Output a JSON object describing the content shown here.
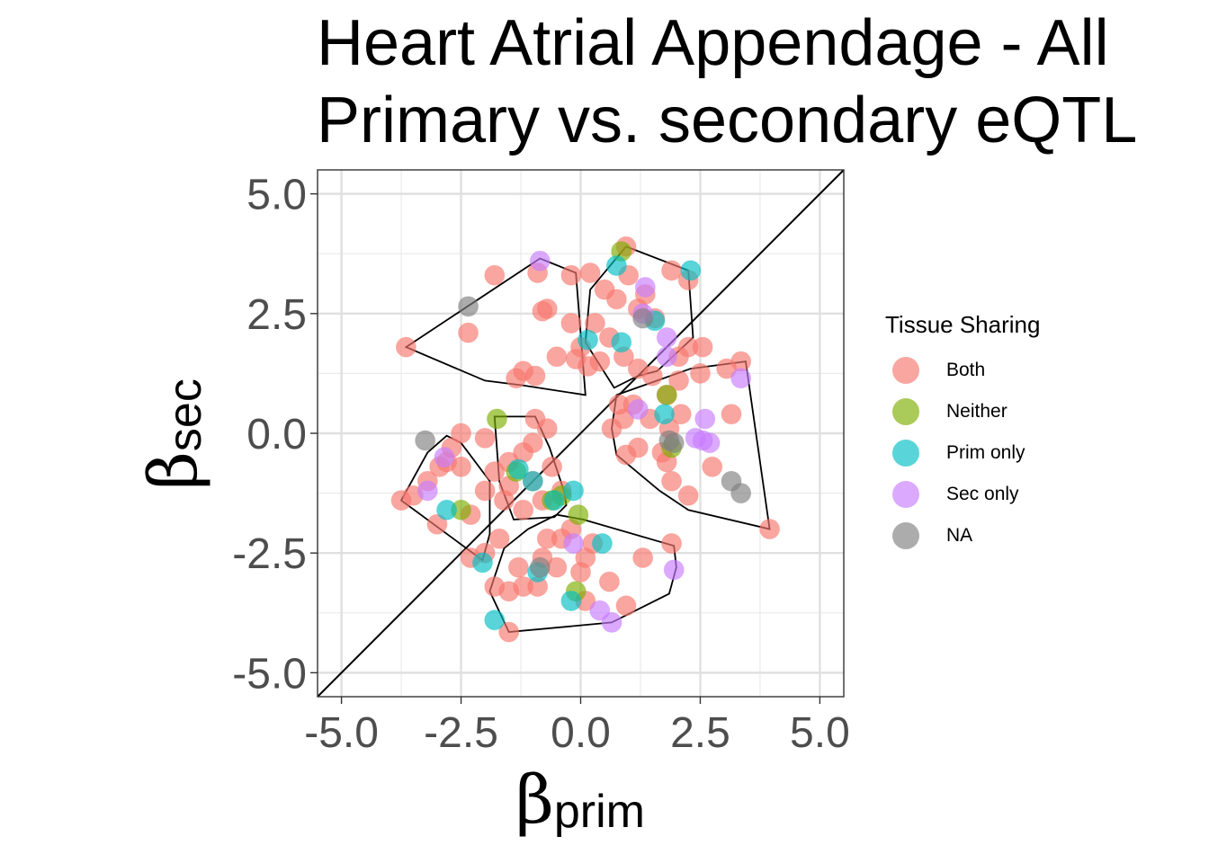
{
  "title_lines": [
    "Heart Atrial Appendage - All",
    "Primary vs. secondary eQTL"
  ],
  "legend": {
    "title": "Tissue Sharing",
    "items": [
      {
        "label": "Both",
        "color": "#F8766D"
      },
      {
        "label": "Neither",
        "color": "#7CAE00"
      },
      {
        "label": "Prim only",
        "color": "#00BFC4"
      },
      {
        "label": "Sec only",
        "color": "#C77CFF"
      },
      {
        "label": "NA",
        "color": "#7F7F7F"
      }
    ]
  },
  "chart_data": {
    "type": "scatter",
    "xlabel": {
      "symbol": "β",
      "sub": "prim"
    },
    "ylabel": {
      "symbol": "β",
      "sub": "sec"
    },
    "xlim": [
      -5.5,
      5.5
    ],
    "ylim": [
      -5.5,
      5.5
    ],
    "xticks": [
      "-5.0",
      "-2.5",
      "0.0",
      "2.5",
      "5.0"
    ],
    "yticks": [
      "5.0",
      "2.5",
      "0.0",
      "-2.5",
      "-5.0"
    ],
    "tick_values": [
      -5.0,
      -2.5,
      0.0,
      2.5,
      5.0
    ],
    "grid": true,
    "reference_line": "y = x",
    "legend_position": "right",
    "series": [
      {
        "name": "Both",
        "color": "#F8766D",
        "points": [
          [
            -3.65,
            1.8
          ],
          [
            -2.35,
            2.1
          ],
          [
            -1.8,
            3.3
          ],
          [
            -1.2,
            1.3
          ],
          [
            -1.35,
            1.15
          ],
          [
            -0.95,
            1.2
          ],
          [
            -0.9,
            3.35
          ],
          [
            -0.7,
            2.6
          ],
          [
            -0.8,
            2.55
          ],
          [
            -0.5,
            1.6
          ],
          [
            -0.2,
            3.3
          ],
          [
            0.2,
            3.35
          ],
          [
            -0.2,
            2.3
          ],
          [
            0.0,
            1.8
          ],
          [
            -0.1,
            1.55
          ],
          [
            0.15,
            1.4
          ],
          [
            0.3,
            2.3
          ],
          [
            0.4,
            1.5
          ],
          [
            0.6,
            2.0
          ],
          [
            0.5,
            3.0
          ],
          [
            0.75,
            2.8
          ],
          [
            0.9,
            1.6
          ],
          [
            0.95,
            3.9
          ],
          [
            1.0,
            3.3
          ],
          [
            1.2,
            2.6
          ],
          [
            1.35,
            2.9
          ],
          [
            1.55,
            2.4
          ],
          [
            1.9,
            3.4
          ],
          [
            2.25,
            3.2
          ],
          [
            2.05,
            1.6
          ],
          [
            2.25,
            1.8
          ],
          [
            2.55,
            1.8
          ],
          [
            3.05,
            1.35
          ],
          [
            3.35,
            1.5
          ],
          [
            2.5,
            1.25
          ],
          [
            2.05,
            1.1
          ],
          [
            1.8,
            0.8
          ],
          [
            1.5,
            1.2
          ],
          [
            1.2,
            1.35
          ],
          [
            0.8,
            0.6
          ],
          [
            0.9,
            0.3
          ],
          [
            1.1,
            0.6
          ],
          [
            1.45,
            0.3
          ],
          [
            1.85,
            0.1
          ],
          [
            2.1,
            0.4
          ],
          [
            2.25,
            -1.3
          ],
          [
            1.8,
            -0.6
          ],
          [
            1.9,
            -1.0
          ],
          [
            1.7,
            -0.4
          ],
          [
            2.75,
            -0.7
          ],
          [
            3.15,
            0.4
          ],
          [
            0.95,
            -0.45
          ],
          [
            0.65,
            0.1
          ],
          [
            1.2,
            -0.3
          ],
          [
            3.95,
            -2.0
          ],
          [
            -0.95,
            0.3
          ],
          [
            -0.7,
            0.1
          ],
          [
            -1.2,
            -0.4
          ],
          [
            -1.5,
            -0.6
          ],
          [
            -1.0,
            -1.0
          ],
          [
            -0.8,
            -1.4
          ],
          [
            -1.2,
            -1.6
          ],
          [
            -1.5,
            -1.1
          ],
          [
            -0.6,
            -0.7
          ],
          [
            -0.4,
            -1.2
          ],
          [
            -1.0,
            -0.2
          ],
          [
            -1.8,
            -0.8
          ],
          [
            -2.0,
            -1.2
          ],
          [
            -2.3,
            -1.7
          ],
          [
            -2.5,
            -0.7
          ],
          [
            -2.8,
            -0.6
          ],
          [
            -2.95,
            -0.7
          ],
          [
            -3.2,
            -1.0
          ],
          [
            -3.5,
            -1.3
          ],
          [
            -3.75,
            -1.4
          ],
          [
            -3.0,
            -1.9
          ],
          [
            -2.5,
            0.0
          ],
          [
            -2.0,
            -2.5
          ],
          [
            -2.3,
            -2.6
          ],
          [
            -1.7,
            -2.2
          ],
          [
            -1.3,
            -2.8
          ],
          [
            -1.5,
            -3.3
          ],
          [
            -1.8,
            -3.2
          ],
          [
            -1.2,
            -3.2
          ],
          [
            -0.9,
            -3.2
          ],
          [
            -0.8,
            -2.6
          ],
          [
            -0.5,
            -2.8
          ],
          [
            -0.4,
            -2.2
          ],
          [
            -0.2,
            -2.0
          ],
          [
            0.0,
            -2.9
          ],
          [
            0.1,
            -2.6
          ],
          [
            0.25,
            -2.3
          ],
          [
            0.6,
            -3.1
          ],
          [
            1.3,
            -2.6
          ],
          [
            1.9,
            -2.3
          ],
          [
            0.95,
            -3.6
          ],
          [
            -1.5,
            -4.15
          ],
          [
            -0.7,
            -2.2
          ],
          [
            0.1,
            -3.5
          ],
          [
            -2.7,
            -0.3
          ],
          [
            -2.0,
            -0.1
          ],
          [
            -1.6,
            -1.4
          ]
        ]
      },
      {
        "name": "Neither",
        "color": "#7CAE00",
        "points": [
          [
            0.85,
            3.8
          ],
          [
            -1.75,
            0.3
          ],
          [
            -0.6,
            -1.4
          ],
          [
            -0.4,
            -1.3
          ],
          [
            -0.1,
            -3.3
          ],
          [
            -2.5,
            -1.6
          ],
          [
            1.8,
            0.8
          ],
          [
            1.9,
            -0.3
          ],
          [
            -1.35,
            -0.8
          ],
          [
            -0.05,
            -1.7
          ]
        ]
      },
      {
        "name": "Prim only",
        "color": "#00BFC4",
        "points": [
          [
            2.3,
            3.4
          ],
          [
            0.75,
            3.5
          ],
          [
            0.15,
            1.95
          ],
          [
            0.85,
            1.9
          ],
          [
            1.55,
            2.35
          ],
          [
            1.75,
            0.4
          ],
          [
            -2.8,
            -1.6
          ],
          [
            -1.3,
            -0.75
          ],
          [
            -1.0,
            -1.0
          ],
          [
            -0.15,
            -1.2
          ],
          [
            -0.9,
            -2.9
          ],
          [
            -0.2,
            -3.5
          ],
          [
            -2.05,
            -2.7
          ],
          [
            -1.8,
            -3.9
          ],
          [
            0.45,
            -2.3
          ],
          [
            -0.55,
            -1.4
          ]
        ]
      },
      {
        "name": "Sec only",
        "color": "#C77CFF",
        "points": [
          [
            -0.85,
            3.6
          ],
          [
            1.35,
            3.05
          ],
          [
            1.3,
            2.5
          ],
          [
            1.8,
            2.0
          ],
          [
            1.8,
            1.6
          ],
          [
            2.6,
            0.3
          ],
          [
            2.7,
            -0.2
          ],
          [
            2.55,
            -0.15
          ],
          [
            3.35,
            1.15
          ],
          [
            2.4,
            -0.1
          ],
          [
            1.2,
            0.5
          ],
          [
            -3.2,
            -1.2
          ],
          [
            -2.85,
            -0.5
          ],
          [
            -0.15,
            -2.3
          ],
          [
            1.95,
            -2.85
          ],
          [
            0.4,
            -3.7
          ],
          [
            0.65,
            -3.95
          ]
        ]
      },
      {
        "name": "NA",
        "color": "#7F7F7F",
        "points": [
          [
            -2.35,
            2.65
          ],
          [
            1.3,
            2.4
          ],
          [
            -3.25,
            -0.15
          ],
          [
            1.85,
            -0.15
          ],
          [
            3.15,
            -1.0
          ],
          [
            3.35,
            -1.25
          ],
          [
            -0.85,
            -2.8
          ],
          [
            1.95,
            -0.2
          ]
        ]
      }
    ],
    "hulls": [
      [
        [
          -3.65,
          1.8
        ],
        [
          -0.85,
          3.65
        ],
        [
          -0.1,
          3.35
        ],
        [
          0.1,
          0.8
        ],
        [
          -1.2,
          1.0
        ],
        [
          -2.0,
          1.1
        ]
      ],
      [
        [
          0.95,
          3.9
        ],
        [
          2.25,
          3.4
        ],
        [
          2.35,
          2.0
        ],
        [
          1.6,
          1.3
        ],
        [
          1.2,
          1.2
        ],
        [
          0.7,
          0.95
        ],
        [
          0.1,
          1.9
        ],
        [
          0.2,
          3.0
        ]
      ],
      [
        [
          0.75,
          0.8
        ],
        [
          2.3,
          1.35
        ],
        [
          3.45,
          1.5
        ],
        [
          3.95,
          -2.0
        ],
        [
          2.25,
          -1.6
        ],
        [
          1.65,
          -1.2
        ],
        [
          0.75,
          -0.45
        ],
        [
          0.65,
          0.1
        ]
      ],
      [
        [
          -3.75,
          -1.4
        ],
        [
          -3.2,
          -0.4
        ],
        [
          -2.8,
          -0.05
        ],
        [
          -2.5,
          -0.2
        ],
        [
          -1.9,
          -1.0
        ],
        [
          -1.9,
          -2.1
        ],
        [
          -2.05,
          -2.65
        ]
      ],
      [
        [
          -1.8,
          0.35
        ],
        [
          -0.95,
          0.35
        ],
        [
          -0.65,
          -0.3
        ],
        [
          -0.35,
          -1.2
        ],
        [
          -0.3,
          -1.5
        ],
        [
          -0.55,
          -1.75
        ],
        [
          -1.4,
          -1.8
        ],
        [
          -1.7,
          -1.0
        ]
      ],
      [
        [
          -1.9,
          -3.3
        ],
        [
          -1.6,
          -2.4
        ],
        [
          -1.1,
          -2.0
        ],
        [
          -0.5,
          -1.7
        ],
        [
          0.05,
          -1.8
        ],
        [
          1.95,
          -2.35
        ],
        [
          2.0,
          -2.8
        ],
        [
          1.85,
          -3.35
        ],
        [
          0.65,
          -3.95
        ],
        [
          -1.5,
          -4.15
        ]
      ]
    ]
  }
}
